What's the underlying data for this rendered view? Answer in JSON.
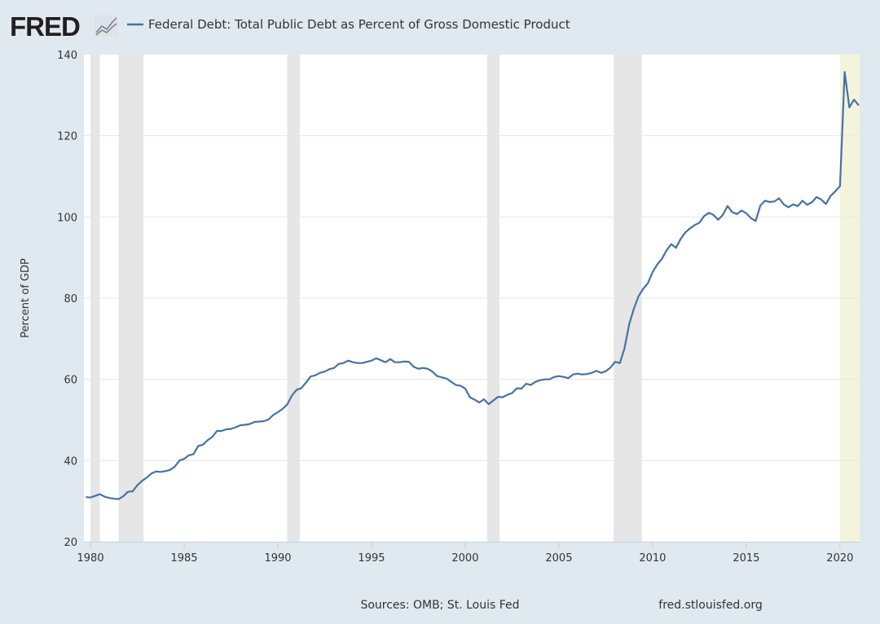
{
  "header": {
    "logo_text": "FRED",
    "logo_icon": "chart-line-icon",
    "legend_label": "Federal Debt: Total Public Debt as Percent of Gross Domestic Product"
  },
  "footer": {
    "sources": "Sources: OMB; St. Louis Fed",
    "site": "fred.stlouisfed.org"
  },
  "chart_data": {
    "type": "line",
    "title": "",
    "xlabel": "",
    "ylabel": "Percent of GDP",
    "frequency": "quarterly",
    "x_start": "1979-10-01",
    "x_end": "2021-01-01",
    "xlim": [
      1979.65,
      2021.05
    ],
    "ylim": [
      20,
      140
    ],
    "yticks": [
      20,
      40,
      60,
      80,
      100,
      120,
      140
    ],
    "xticks": [
      1980,
      1985,
      1990,
      1995,
      2000,
      2005,
      2010,
      2015,
      2020
    ],
    "grid": true,
    "legend_placement": "top",
    "line_color": "#4572a7",
    "recession_color": "#e6e6e6",
    "highlight_color": "#f4f4dc",
    "recessions": [
      [
        1980.0,
        1980.5
      ],
      [
        1981.5,
        1982.83
      ],
      [
        1990.5,
        1991.17
      ],
      [
        2001.17,
        2001.83
      ],
      [
        2007.92,
        2009.42
      ]
    ],
    "highlight": [
      2020.0,
      2021.05
    ],
    "series": [
      {
        "name": "Federal Debt: Total Public Debt as Percent of Gross Domestic Product",
        "values": [
          31.0,
          30.9,
          31.3,
          31.7,
          31.1,
          30.8,
          30.6,
          30.5,
          31.2,
          32.3,
          32.4,
          33.9,
          35.0,
          35.8,
          36.8,
          37.3,
          37.2,
          37.4,
          37.7,
          38.5,
          40.0,
          40.4,
          41.3,
          41.6,
          43.6,
          43.9,
          45.0,
          45.8,
          47.3,
          47.3,
          47.7,
          47.8,
          48.2,
          48.7,
          48.8,
          49.0,
          49.5,
          49.6,
          49.7,
          50.1,
          51.2,
          51.9,
          52.7,
          53.8,
          56.0,
          57.4,
          57.8,
          59.2,
          60.7,
          61.0,
          61.6,
          61.9,
          62.5,
          62.8,
          63.8,
          64.0,
          64.6,
          64.2,
          64.0,
          64.0,
          64.3,
          64.6,
          65.2,
          64.7,
          64.2,
          65.0,
          64.2,
          64.2,
          64.4,
          64.3,
          63.1,
          62.6,
          62.8,
          62.6,
          61.9,
          60.8,
          60.5,
          60.2,
          59.4,
          58.6,
          58.4,
          57.7,
          55.6,
          55.0,
          54.3,
          55.1,
          53.9,
          54.8,
          55.7,
          55.6,
          56.2,
          56.6,
          57.8,
          57.7,
          58.9,
          58.6,
          59.4,
          59.8,
          60.0,
          60.0,
          60.6,
          60.8,
          60.6,
          60.3,
          61.2,
          61.4,
          61.2,
          61.3,
          61.6,
          62.1,
          61.6,
          62.0,
          62.9,
          64.3,
          64.0,
          67.6,
          73.6,
          77.4,
          80.5,
          82.3,
          83.7,
          86.4,
          88.3,
          89.7,
          91.8,
          93.3,
          92.4,
          94.6,
          96.2,
          97.2,
          98.0,
          98.6,
          100.2,
          101.0,
          100.5,
          99.3,
          100.5,
          102.7,
          101.2,
          100.7,
          101.6,
          100.9,
          99.7,
          99.0,
          102.8,
          104.0,
          103.7,
          103.8,
          104.6,
          103.1,
          102.4,
          103.1,
          102.7,
          104.0,
          103.0,
          103.6,
          104.9,
          104.3,
          103.2,
          105.2,
          106.3,
          107.6,
          135.7,
          127.0,
          128.9,
          127.5
        ]
      }
    ]
  }
}
